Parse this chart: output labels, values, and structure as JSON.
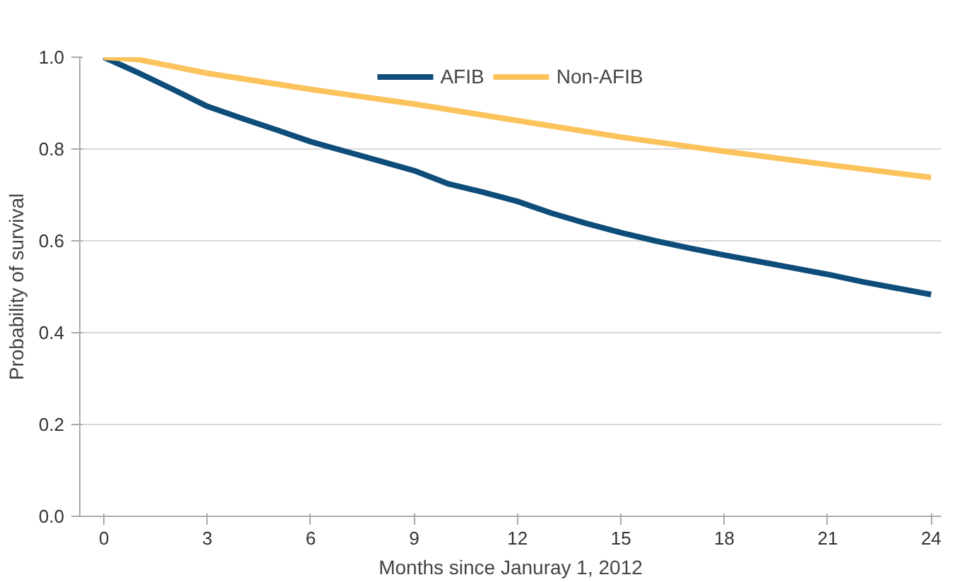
{
  "chart_data": {
    "type": "line",
    "xlabel": "Months since Januray 1, 2012",
    "ylabel": "Probability of survival",
    "xlim": [
      -0.7,
      24.3
    ],
    "xticks": [
      0,
      3,
      6,
      9,
      12,
      15,
      18,
      21,
      24
    ],
    "ylim": [
      0,
      1
    ],
    "yticks": [
      {
        "value": 0,
        "label": "0.0"
      },
      {
        "value": 0.2,
        "label": "0.2"
      },
      {
        "value": 0.4,
        "label": "0.4"
      },
      {
        "value": 0.6,
        "label": "0.6"
      },
      {
        "value": 0.8,
        "label": "0.8"
      },
      {
        "value": 1,
        "label": "1.0"
      }
    ],
    "grid": "y",
    "legend": "top",
    "marker": "none",
    "line_style": "solid",
    "series": [
      {
        "name": "AFIB",
        "color": "#0e4c7a",
        "x": [
          0,
          1,
          2,
          3,
          4,
          5,
          6,
          7,
          8,
          9,
          10,
          11,
          12,
          13,
          14,
          15,
          16,
          17,
          18,
          19,
          20,
          21,
          22,
          23,
          24
        ],
        "values": [
          1.0,
          0.966,
          0.93,
          0.893,
          0.867,
          0.842,
          0.816,
          0.795,
          0.774,
          0.753,
          0.724,
          0.706,
          0.686,
          0.66,
          0.638,
          0.618,
          0.6,
          0.584,
          0.569,
          0.555,
          0.541,
          0.527,
          0.511,
          0.497,
          0.483
        ]
      },
      {
        "name": "Non-AFIB",
        "color": "#fcc35c",
        "x": [
          0,
          1,
          3,
          6,
          9,
          12,
          15,
          18,
          21,
          24
        ],
        "values": [
          1.0,
          0.995,
          0.965,
          0.93,
          0.898,
          0.862,
          0.826,
          0.795,
          0.766,
          0.738
        ]
      }
    ]
  }
}
